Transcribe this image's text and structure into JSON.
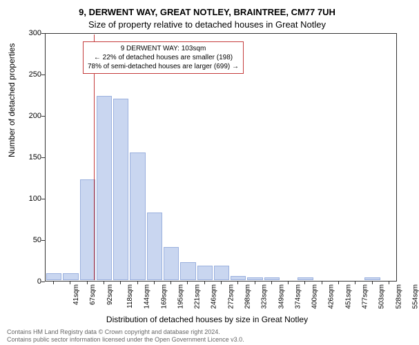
{
  "title1": "9, DERWENT WAY, GREAT NOTLEY, BRAINTREE, CM77 7UH",
  "title2": "Size of property relative to detached houses in Great Notley",
  "ylabel": "Number of detached properties",
  "xlabel": "Distribution of detached houses by size in Great Notley",
  "chart": {
    "type": "histogram",
    "ylim": [
      0,
      300
    ],
    "yticks": [
      0,
      50,
      100,
      150,
      200,
      250,
      300
    ],
    "xticks": [
      "41sqm",
      "67sqm",
      "92sqm",
      "118sqm",
      "144sqm",
      "169sqm",
      "195sqm",
      "221sqm",
      "246sqm",
      "272sqm",
      "298sqm",
      "323sqm",
      "349sqm",
      "374sqm",
      "400sqm",
      "426sqm",
      "451sqm",
      "477sqm",
      "503sqm",
      "528sqm",
      "554sqm"
    ],
    "bars": [
      {
        "i": 0,
        "v": 8
      },
      {
        "i": 1,
        "v": 8
      },
      {
        "i": 2,
        "v": 122
      },
      {
        "i": 3,
        "v": 224
      },
      {
        "i": 4,
        "v": 220
      },
      {
        "i": 5,
        "v": 155
      },
      {
        "i": 6,
        "v": 82
      },
      {
        "i": 7,
        "v": 40
      },
      {
        "i": 8,
        "v": 22
      },
      {
        "i": 9,
        "v": 18
      },
      {
        "i": 10,
        "v": 18
      },
      {
        "i": 11,
        "v": 5
      },
      {
        "i": 12,
        "v": 3
      },
      {
        "i": 13,
        "v": 3
      },
      {
        "i": 14,
        "v": 0
      },
      {
        "i": 15,
        "v": 3
      },
      {
        "i": 16,
        "v": 0
      },
      {
        "i": 17,
        "v": 0
      },
      {
        "i": 18,
        "v": 0
      },
      {
        "i": 19,
        "v": 3
      },
      {
        "i": 20,
        "v": 0
      }
    ],
    "bar_color": "#c9d6f0",
    "bar_border": "#9ab0de",
    "refline_index": 2.4,
    "refline_color": "#c43a3a",
    "background_color": "#ffffff"
  },
  "annotation": {
    "lines": [
      "9 DERWENT WAY: 103sqm",
      "← 22% of detached houses are smaller (198)",
      "78% of semi-detached houses are larger (699) →"
    ],
    "border_color": "#c43a3a"
  },
  "footer": {
    "line1": "Contains HM Land Registry data © Crown copyright and database right 2024.",
    "line2": "Contains public sector information licensed under the Open Government Licence v3.0."
  }
}
